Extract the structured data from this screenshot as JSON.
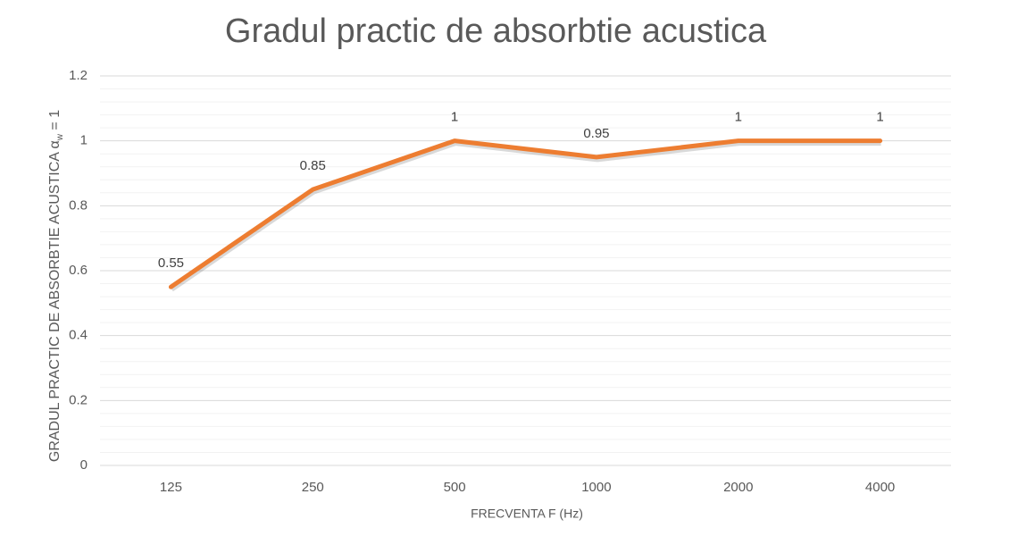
{
  "chart_data": {
    "type": "line",
    "title": "Gradul practic de absorbtie acustica",
    "x_label": "FRECVENTA F (Hz)",
    "y_label": {
      "text": "GRADUL PRACTIC DE ABSORBTIE ACUSTICA α",
      "subscript": "w",
      "suffix": " = 1"
    },
    "categories": [
      "125",
      "250",
      "500",
      "1000",
      "2000",
      "4000"
    ],
    "series": [
      {
        "name": "Gradul practic de absorbtie acustica",
        "color": "#ed7d31",
        "values": [
          0.55,
          0.85,
          1,
          0.95,
          1,
          1
        ]
      }
    ],
    "ylim": [
      0,
      1.2
    ],
    "yticks": [
      0,
      0.2,
      0.4,
      0.6,
      0.8,
      1,
      1.2
    ],
    "grid": true,
    "minor_grid": true,
    "data_labels": true
  }
}
